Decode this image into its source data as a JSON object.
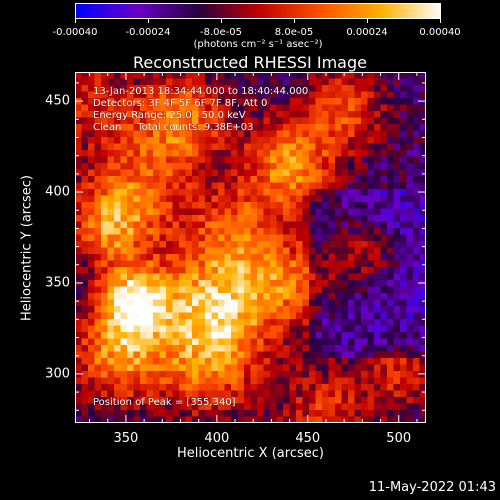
{
  "colorbar": {
    "tick_labels": [
      "-0.00040",
      "-0.00024",
      "-8.0e-05",
      "8.0e-05",
      "0.00024",
      "0.00040"
    ],
    "unit": "(photons cm⁻² s⁻¹ asec⁻²)",
    "range": [
      -0.0004,
      0.0004
    ]
  },
  "annotations": {
    "time": "13-Jan-2013 18:34:44.000 to 18:40:44.000",
    "detectors": "Detectors: 3F 4F 5F 6F 7F 8F, Att 0",
    "energy": "Energy Range: 25.0 - 50.0 keV",
    "clean": "Clean     Total counts: 9.38E+03",
    "peak": "Position of Peak = [355,340]"
  },
  "date_stamp": "11-May-2022 01:43",
  "chart_data": {
    "type": "heatmap",
    "title": "Reconstructed RHESSI Image",
    "xlabel": "Heliocentric X (arcsec)",
    "ylabel": "Heliocentric Y (arcsec)",
    "x_ticks": [
      350,
      400,
      450,
      500
    ],
    "y_ticks": [
      300,
      350,
      400,
      450
    ],
    "x_range": [
      322,
      515
    ],
    "y_range": [
      273,
      466
    ],
    "peak_position": [
      355,
      340
    ],
    "colormap": [
      "#0000ff",
      "#6a00c8",
      "#2a0040",
      "#c00000",
      "#ff5000",
      "#ffb000",
      "#ffffff"
    ]
  }
}
